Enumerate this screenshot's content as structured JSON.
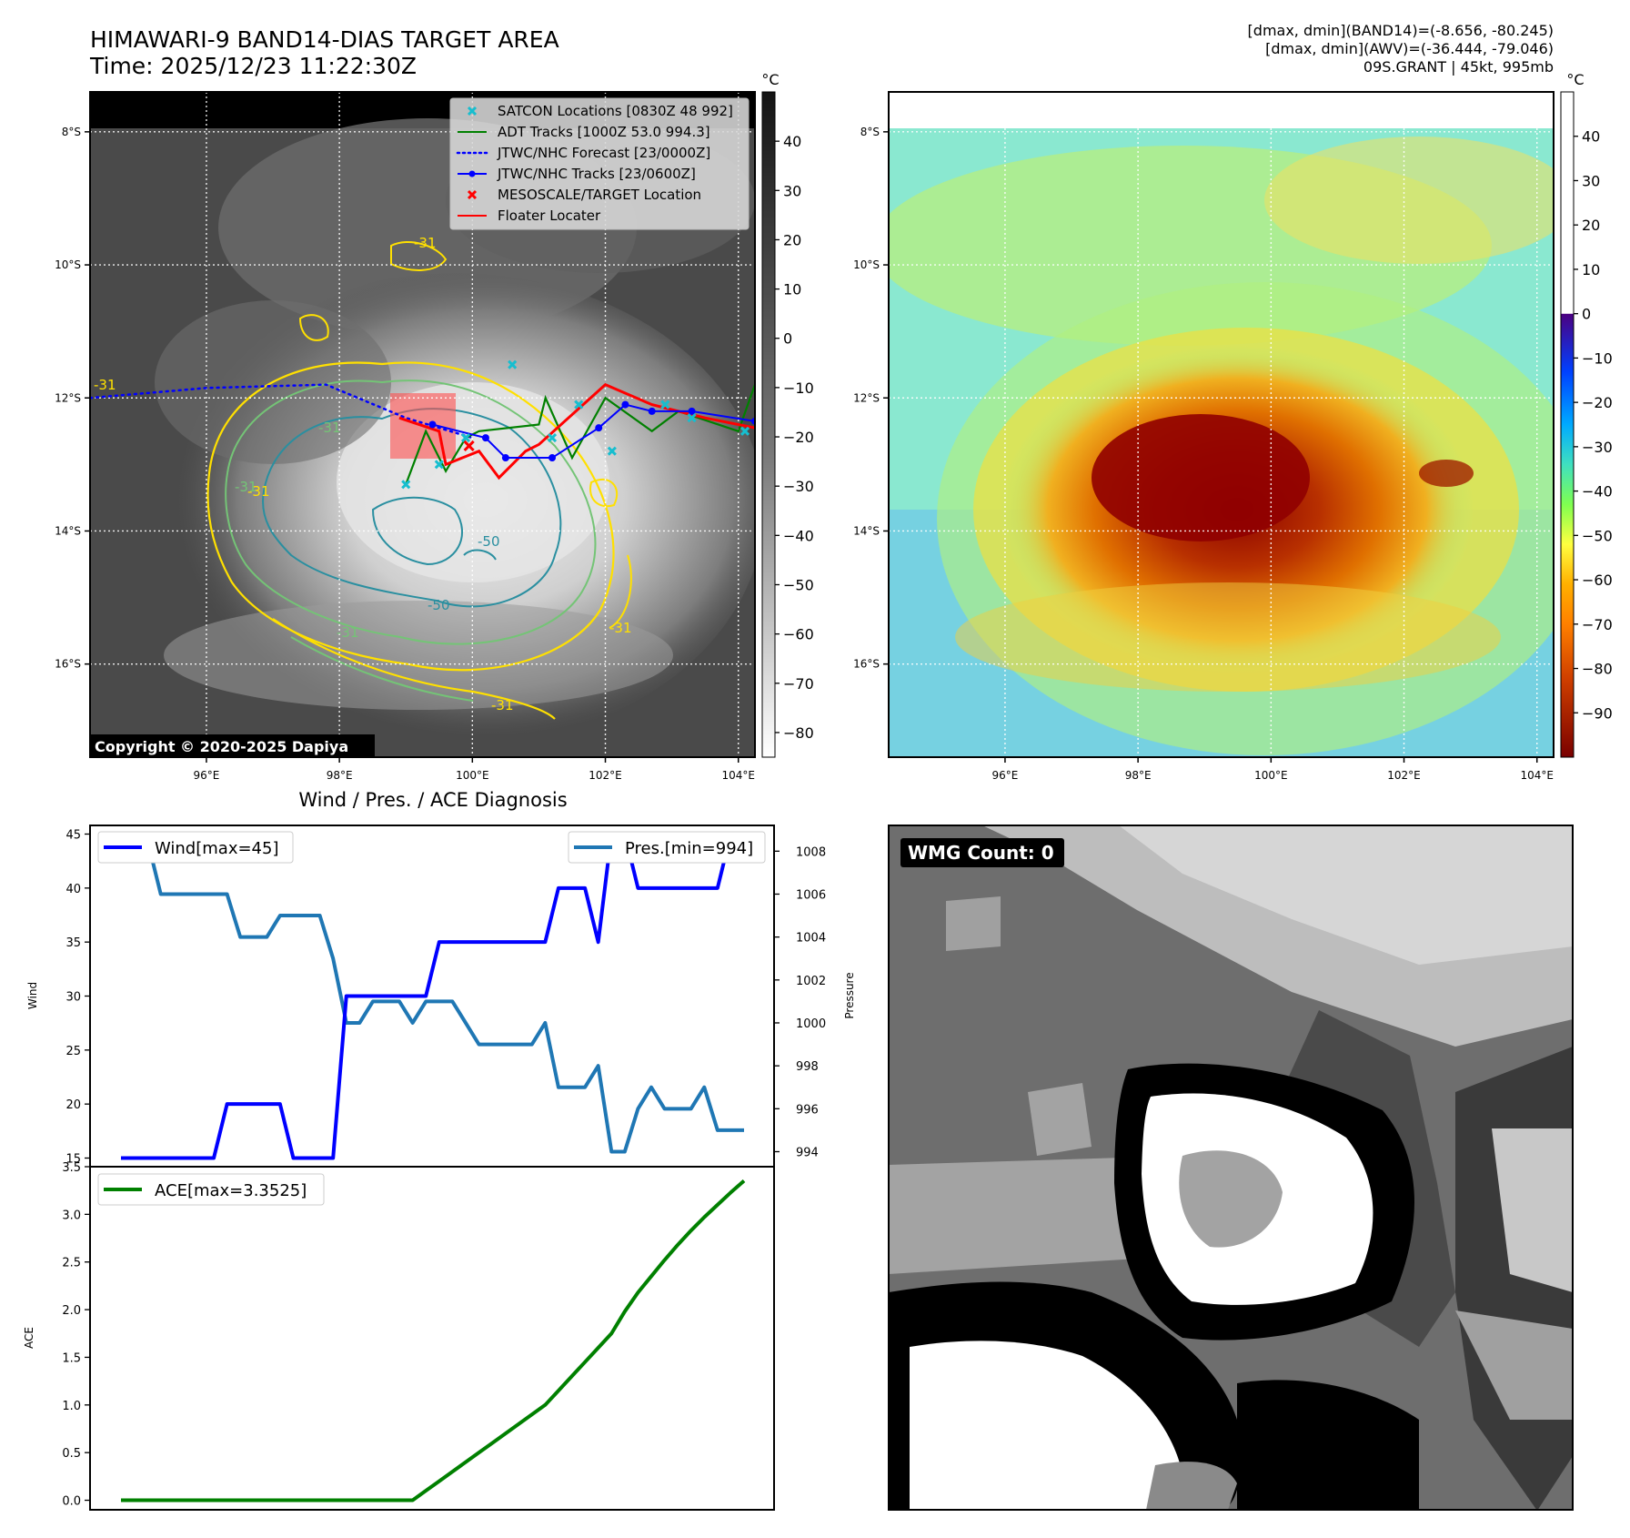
{
  "header": {
    "title_line1": "HIMAWARI-9 BAND14-DIAS TARGET AREA",
    "title_line2": "Time: 2025/12/23 11:22:30Z",
    "stats_line1": "[dmax, dmin](BAND14)=(-8.656, -80.245)",
    "stats_line2": "[dmax, dmin](AWV)=(-36.444, -79.046)",
    "stats_line3": "09S.GRANT | 45kt, 995mb"
  },
  "copyright": "Copyright © 2020-2025 Dapiya",
  "wmg": {
    "label": "WMG Count: 0"
  },
  "map_axes": {
    "lat_ticks": [
      "8°S",
      "10°S",
      "12°S",
      "14°S",
      "16°S"
    ],
    "lat_values": [
      -8,
      -10,
      -12,
      -14,
      -16
    ],
    "lon_ticks": [
      "96°E",
      "98°E",
      "100°E",
      "102°E",
      "104°E"
    ],
    "lon_values": [
      96,
      98,
      100,
      102,
      104
    ],
    "lon_range": [
      94.25,
      104.25
    ],
    "lat_range": [
      -17.4,
      -7.4
    ]
  },
  "colorbar_left": {
    "unit": "°C",
    "ticks": [
      "40",
      "30",
      "20",
      "10",
      "0",
      "−10",
      "−20",
      "−30",
      "−40",
      "−50",
      "−60",
      "−70",
      "−80"
    ],
    "values": [
      40,
      30,
      20,
      10,
      0,
      -10,
      -20,
      -30,
      -40,
      -50,
      -60,
      -70,
      -80
    ],
    "range": [
      -85,
      50
    ]
  },
  "colorbar_right": {
    "unit": "°C",
    "ticks": [
      "40",
      "30",
      "20",
      "10",
      "0",
      "−10",
      "−20",
      "−30",
      "−40",
      "−50",
      "−60",
      "−70",
      "−80",
      "−90"
    ],
    "values": [
      40,
      30,
      20,
      10,
      0,
      -10,
      -20,
      -30,
      -40,
      -50,
      -60,
      -70,
      -80,
      -90
    ],
    "range": [
      -100,
      50
    ]
  },
  "legend": [
    {
      "label": "SATCON Locations [0830Z 48 992]",
      "color": "#17becf",
      "marker": "x"
    },
    {
      "label": "ADT Tracks [1000Z 53.0 994.3]",
      "color": "#008000",
      "marker": "line"
    },
    {
      "label": "JTWC/NHC Forecast [23/0000Z]",
      "color": "#0000ff",
      "marker": "dotted"
    },
    {
      "label": "JTWC/NHC Tracks [23/0600Z]",
      "color": "#0000ff",
      "marker": "line-dot"
    },
    {
      "label": "MESOSCALE/TARGET Location",
      "color": "#ff0000",
      "marker": "x"
    },
    {
      "label": "Floater Locater",
      "color": "#ff0000",
      "marker": "line"
    }
  ],
  "contour_labels": [
    "-31",
    "-31",
    "-31",
    "-31",
    "-31",
    "-31",
    "-31",
    "-50",
    "-50",
    "-31"
  ],
  "tracks": {
    "forecast": [
      [
        94.25,
        -12.0
      ],
      [
        96.0,
        -11.85
      ],
      [
        97.8,
        -11.8
      ],
      [
        99.0,
        -12.3
      ],
      [
        100.0,
        -12.6
      ]
    ],
    "jtwc": [
      [
        99.4,
        -12.4
      ],
      [
        100.2,
        -12.6
      ],
      [
        100.5,
        -12.9
      ],
      [
        101.2,
        -12.9
      ],
      [
        101.9,
        -12.45
      ],
      [
        102.3,
        -12.1
      ],
      [
        102.7,
        -12.2
      ],
      [
        103.3,
        -12.2
      ],
      [
        104.25,
        -12.35
      ]
    ],
    "adt": [
      [
        99.0,
        -13.3
      ],
      [
        99.3,
        -12.5
      ],
      [
        99.6,
        -13.1
      ],
      [
        99.9,
        -12.6
      ],
      [
        100.1,
        -12.5
      ],
      [
        101.0,
        -12.4
      ],
      [
        101.1,
        -12.0
      ],
      [
        101.5,
        -12.9
      ],
      [
        102.0,
        -12.0
      ],
      [
        102.7,
        -12.5
      ],
      [
        103.1,
        -12.2
      ],
      [
        104.0,
        -12.5
      ],
      [
        104.25,
        -11.8
      ]
    ],
    "floater": [
      [
        98.9,
        -12.3
      ],
      [
        99.5,
        -12.5
      ],
      [
        99.6,
        -13.0
      ],
      [
        100.1,
        -12.8
      ],
      [
        100.4,
        -13.2
      ],
      [
        100.8,
        -12.8
      ],
      [
        101.0,
        -12.7
      ],
      [
        102.0,
        -11.8
      ],
      [
        102.7,
        -12.1
      ],
      [
        103.5,
        -12.3
      ],
      [
        104.25,
        -12.45
      ]
    ],
    "satcon": [
      [
        99.0,
        -13.3
      ],
      [
        99.5,
        -13.0
      ],
      [
        99.9,
        -12.6
      ],
      [
        100.6,
        -11.5
      ],
      [
        101.2,
        -12.6
      ],
      [
        101.6,
        -12.1
      ],
      [
        102.1,
        -12.8
      ],
      [
        102.9,
        -12.1
      ],
      [
        103.3,
        -12.3
      ],
      [
        104.1,
        -12.5
      ]
    ],
    "target": [
      [
        99.95,
        -12.72
      ]
    ]
  },
  "chart_data": [
    {
      "type": "line",
      "title": "Wind / Pres. / ACE Diagnosis",
      "ylabel": "Wind",
      "ylabel_right": "Pressure",
      "x": [
        0,
        1,
        2,
        3,
        4,
        5,
        6,
        7,
        8,
        9,
        10,
        11,
        12,
        13,
        14,
        15,
        16,
        17,
        18,
        19,
        20,
        21,
        22,
        23,
        24,
        25,
        26,
        27,
        28,
        29,
        30,
        31,
        32,
        33,
        34,
        35,
        36,
        37,
        38,
        39,
        40,
        41,
        42,
        43,
        44,
        45,
        46,
        47
      ],
      "series": [
        {
          "name": "Wind[max=45]",
          "axis": "left",
          "color": "#0000ff",
          "values": [
            15,
            15,
            15,
            15,
            15,
            15,
            15,
            15,
            20,
            20,
            20,
            20,
            20,
            15,
            15,
            15,
            15,
            30,
            30,
            30,
            30,
            30,
            30,
            30,
            35,
            35,
            35,
            35,
            35,
            35,
            35,
            35,
            35,
            40,
            40,
            40,
            35,
            45,
            45,
            40,
            40,
            40,
            40,
            40,
            40,
            40,
            45,
            45
          ]
        },
        {
          "name": "Pres.[min=994]",
          "axis": "right",
          "color": "#1f77b4",
          "values": [
            1008.5,
            1008.5,
            1008.5,
            1006,
            1006,
            1006,
            1006,
            1006,
            1006,
            1004,
            1004,
            1004,
            1005,
            1005,
            1005,
            1005,
            1003,
            1000,
            1000,
            1001,
            1001,
            1001,
            1000,
            1001,
            1001,
            1001,
            1000,
            999,
            999,
            999,
            999,
            999,
            1000,
            997,
            997,
            997,
            998,
            994,
            994,
            996,
            997,
            996,
            996,
            996,
            997,
            995,
            995,
            995
          ]
        }
      ],
      "ylim": [
        14.2,
        45.8
      ],
      "ylim_right": [
        993.3,
        1009.2
      ],
      "yticks": [
        15,
        20,
        25,
        30,
        35,
        40,
        45
      ],
      "yticks_right": [
        994,
        996,
        998,
        1000,
        1002,
        1004,
        1006,
        1008
      ]
    },
    {
      "type": "line",
      "ylabel": "ACE",
      "x": [
        0,
        1,
        2,
        3,
        4,
        5,
        6,
        7,
        8,
        9,
        10,
        11,
        12,
        13,
        14,
        15,
        16,
        17,
        18,
        19,
        20,
        21,
        22,
        23,
        24,
        25,
        26,
        27,
        28,
        29,
        30,
        31,
        32,
        33,
        34,
        35,
        36,
        37,
        38,
        39,
        40,
        41,
        42,
        43,
        44,
        45,
        46,
        47
      ],
      "series": [
        {
          "name": "ACE[max=3.3525]",
          "color": "#008000",
          "values": [
            0,
            0,
            0,
            0,
            0,
            0,
            0,
            0,
            0,
            0,
            0,
            0,
            0,
            0,
            0,
            0,
            0,
            0,
            0,
            0,
            0,
            0,
            0,
            0.1,
            0.2,
            0.3,
            0.4,
            0.5,
            0.6,
            0.7,
            0.8,
            0.9,
            1.0,
            1.15,
            1.3,
            1.45,
            1.6,
            1.75,
            1.98,
            2.18,
            2.35,
            2.52,
            2.68,
            2.83,
            2.97,
            3.1,
            3.23,
            3.3525
          ]
        }
      ],
      "ylim": [
        -0.1,
        3.5
      ],
      "yticks": [
        "0.0",
        "0.5",
        "1.0",
        "1.5",
        "2.0",
        "2.5",
        "3.0",
        "3.5"
      ],
      "ytick_values": [
        0,
        0.5,
        1,
        1.5,
        2,
        2.5,
        3,
        3.5
      ]
    }
  ]
}
